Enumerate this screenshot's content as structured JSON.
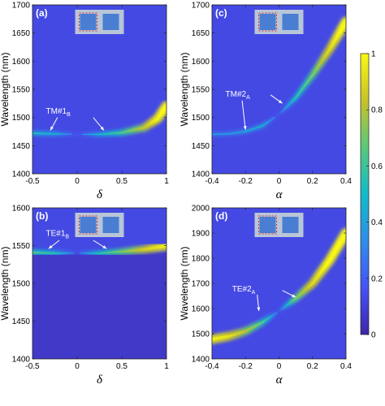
{
  "chart_data": [
    {
      "panel": "(a)",
      "type": "heatmap",
      "xlabel": "δ",
      "ylabel": "Wavelength (nm)",
      "xlim": [
        -0.5,
        1
      ],
      "ylim": [
        1400,
        1700
      ],
      "xticks": [
        "-0.5",
        "0",
        "0.5",
        "1"
      ],
      "yticks": [
        "1400",
        "1450",
        "1500",
        "1550",
        "1600",
        "1650",
        "1700"
      ],
      "ridge": {
        "x": [
          -0.5,
          -0.25,
          0,
          0.25,
          0.5,
          0.75,
          0.9,
          1.0
        ],
        "y": [
          1472,
          1471,
          1470,
          1470,
          1473,
          1482,
          1498,
          1520
        ],
        "intensity": [
          0.3,
          0.25,
          0.0,
          0.25,
          0.45,
          0.7,
          0.9,
          1.0
        ]
      },
      "annotation": {
        "label": "TM#1",
        "subscript": "B"
      }
    },
    {
      "panel": "(b)",
      "type": "heatmap",
      "xlabel": "δ",
      "ylabel": "Wavelength (nm)",
      "xlim": [
        -0.5,
        1
      ],
      "ylim": [
        1400,
        1600
      ],
      "xticks": [
        "-0.5",
        "0",
        "0.5",
        "1"
      ],
      "yticks": [
        "1400",
        "1450",
        "1500",
        "1550",
        "1600"
      ],
      "ridge": {
        "x": [
          -0.5,
          -0.25,
          0,
          0.25,
          0.5,
          0.75,
          1.0
        ],
        "y": [
          1541,
          1540,
          1540,
          1540,
          1542,
          1545,
          1550
        ],
        "intensity": [
          0.45,
          0.35,
          0.0,
          0.35,
          0.55,
          0.75,
          0.9
        ]
      },
      "annotation": {
        "label": "TE#1",
        "subscript": "B"
      }
    },
    {
      "panel": "(c)",
      "type": "heatmap",
      "xlabel": "α",
      "ylabel": "Wavelength (nm)",
      "xlim": [
        -0.4,
        0.4
      ],
      "ylim": [
        1400,
        1700
      ],
      "xticks": [
        "-0.4",
        "-0.2",
        "0",
        "0.2",
        "0.4"
      ],
      "yticks": [
        "1400",
        "1450",
        "1500",
        "1550",
        "1600",
        "1650",
        "1700"
      ],
      "ridge": {
        "x": [
          -0.4,
          -0.3,
          -0.2,
          -0.1,
          0,
          0.1,
          0.2,
          0.3,
          0.4
        ],
        "y": [
          1470,
          1471,
          1475,
          1485,
          1505,
          1535,
          1575,
          1620,
          1670
        ],
        "intensity": [
          0.15,
          0.15,
          0.2,
          0.25,
          0.0,
          0.35,
          0.55,
          0.8,
          1.0
        ]
      },
      "annotation": {
        "label": "TM#2",
        "subscript": "A"
      }
    },
    {
      "panel": "(d)",
      "type": "heatmap",
      "xlabel": "α",
      "ylabel": "Wavelength (nm)",
      "xlim": [
        -0.4,
        0.4
      ],
      "ylim": [
        1400,
        2000
      ],
      "xticks": [
        "-0.4",
        "-0.2",
        "0",
        "0.2",
        "0.4"
      ],
      "yticks": [
        "1400",
        "1500",
        "1600",
        "1700",
        "1800",
        "1900",
        "2000"
      ],
      "ridge": {
        "x": [
          -0.4,
          -0.3,
          -0.2,
          -0.1,
          0,
          0.1,
          0.2,
          0.3,
          0.4
        ],
        "y": [
          1478,
          1490,
          1510,
          1545,
          1590,
          1640,
          1700,
          1790,
          1900
        ],
        "intensity": [
          0.9,
          0.85,
          0.7,
          0.5,
          0.0,
          0.55,
          0.8,
          0.95,
          1.0
        ]
      },
      "annotation": {
        "label": "TE#2",
        "subscript": "A"
      }
    }
  ],
  "colorbar": {
    "range": [
      0,
      1
    ],
    "ticks": [
      "0",
      "0.2",
      "0.4",
      "0.6",
      "0.8",
      "1"
    ],
    "colors": [
      "#3d26a8",
      "#4653f3",
      "#2f8ee9",
      "#14bac9",
      "#5ac87b",
      "#c7c22a",
      "#f9f814"
    ]
  }
}
